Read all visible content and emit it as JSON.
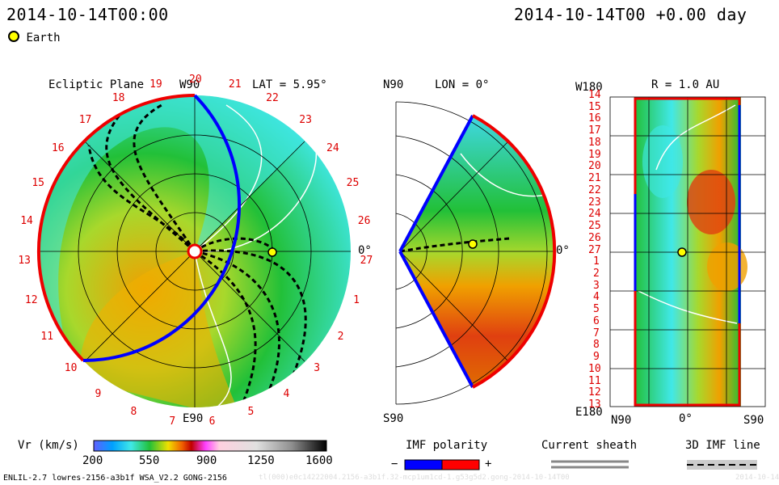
{
  "header": {
    "left_timestamp": "2014-10-14T00:00",
    "right_timestamp": "2014-10-14T00 +0.00 day",
    "earth_legend": "Earth"
  },
  "panel_ecliptic": {
    "title": "Ecliptic Plane",
    "top_label": "W90",
    "bottom_label": "E90",
    "right_label": "0°",
    "lat_label": "LAT = 5.95°",
    "carrington_labels": [
      "20",
      "21",
      "22",
      "23",
      "24",
      "25",
      "26",
      "27",
      "1",
      "2",
      "3",
      "4",
      "5",
      "6",
      "7",
      "8",
      "9",
      "10",
      "11",
      "12",
      "13",
      "14",
      "15",
      "16",
      "17",
      "18",
      "19"
    ]
  },
  "panel_meridional": {
    "lon_label": "LON = 0°",
    "top_label": "N90",
    "bottom_label": "S90",
    "right_label": "0°"
  },
  "panel_radial": {
    "title": "R = 1.0 AU",
    "top_left": "W180",
    "bottom_left": "E180",
    "x_labels": [
      "N90",
      "0°",
      "S90"
    ],
    "y_labels": [
      "14",
      "15",
      "16",
      "17",
      "18",
      "19",
      "20",
      "21",
      "22",
      "23",
      "24",
      "25",
      "26",
      "27",
      "1",
      "2",
      "3",
      "4",
      "5",
      "6",
      "7",
      "8",
      "9",
      "10",
      "11",
      "12",
      "13"
    ]
  },
  "colorbar": {
    "label": "Vr (km/s)",
    "ticks": [
      "200",
      "550",
      "900",
      "1250",
      "1600"
    ],
    "min": 200,
    "max": 1600
  },
  "imf_polarity": {
    "label": "IMF polarity",
    "minus": "−",
    "plus": "+",
    "colors": {
      "negative": "#0000ff",
      "positive": "#ff0000"
    }
  },
  "current_sheath": {
    "label": "Current sheath"
  },
  "imf_line": {
    "label": "3D IMF line"
  },
  "footer": {
    "model": "ENLIL-2.7 lowres-2156-a3b1f WSA_V2.2 GONG-2156",
    "run_id": "tl(000)e0c14222004.2156-a3b1f.32-mcp1um1cd-1.g53g5d2.gong-2014-10-14T00",
    "date": "2014-10-14"
  },
  "colors": {
    "cyan": "#40e8e8",
    "green": "#22c038",
    "yellow_green": "#a8d82c",
    "orange": "#f0a000",
    "red_orange": "#e04010"
  }
}
